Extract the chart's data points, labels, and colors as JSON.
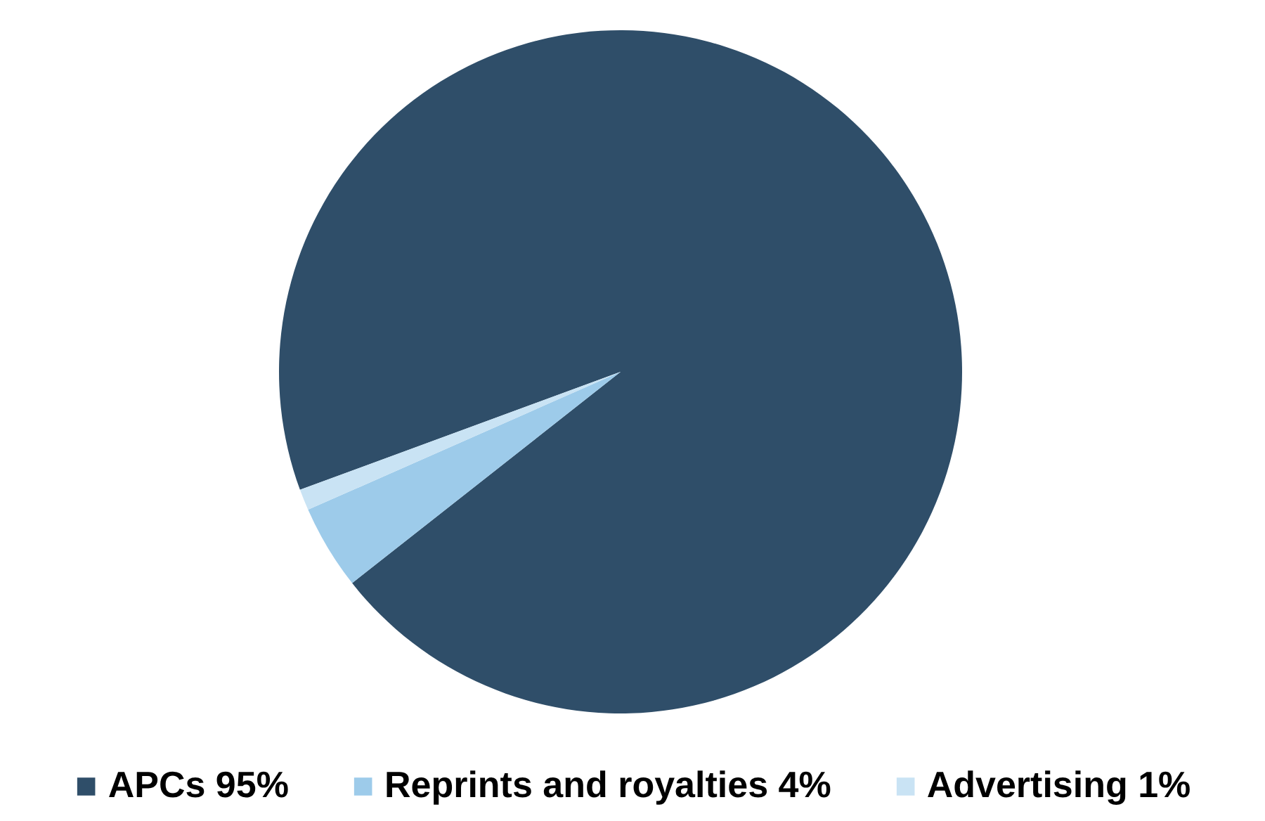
{
  "chart_data": {
    "type": "pie",
    "categories": [
      "APCs 95%",
      "Reprints and royalties 4%",
      "Advertising 1%"
    ],
    "values": [
      95,
      4,
      1
    ],
    "colors": [
      "#2f4e69",
      "#9dcbea",
      "#c9e3f4"
    ],
    "legend": "bottom"
  }
}
